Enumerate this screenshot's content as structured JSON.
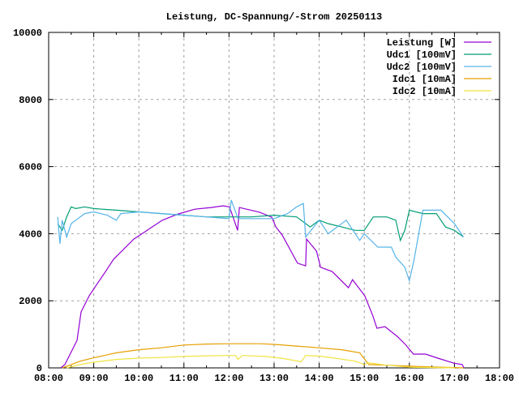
{
  "chart_data": {
    "type": "line",
    "title": "Leistung, DC-Spannung/-Strom 20250113",
    "xlabel": "",
    "ylabel": "",
    "xlim": [
      8,
      18
    ],
    "ylim": [
      0,
      10000
    ],
    "grid": true,
    "legend_position": "top-right",
    "x_unit": "hours",
    "x_ticks": [
      8,
      9,
      10,
      11,
      12,
      13,
      14,
      15,
      16,
      17,
      18
    ],
    "x_tick_labels": [
      "08:00",
      "09:00",
      "10:00",
      "11:00",
      "12:00",
      "13:00",
      "14:00",
      "15:00",
      "16:00",
      "17:00",
      "18:00"
    ],
    "y_ticks": [
      0,
      2000,
      4000,
      6000,
      8000,
      10000
    ],
    "y_tick_labels": [
      "0",
      "2000",
      "4000",
      "6000",
      "8000",
      "10000"
    ],
    "series": [
      {
        "name": "Leistung [W]",
        "color": "#9400d3",
        "x": [
          8.27,
          8.36,
          8.54,
          8.63,
          8.72,
          8.9,
          9.08,
          9.26,
          9.44,
          9.62,
          9.89,
          10.16,
          10.52,
          10.88,
          11.24,
          11.6,
          11.87,
          12.01,
          12.19,
          12.23,
          12.68,
          12.95,
          13.04,
          13.18,
          13.52,
          13.7,
          13.72,
          13.94,
          14.03,
          14.29,
          14.65,
          14.74,
          15.01,
          15.19,
          15.28,
          15.46,
          15.73,
          15.91,
          16.09,
          16.36,
          16.63,
          16.99,
          17.17,
          17.21
        ],
        "y": [
          0,
          100,
          580,
          820,
          1670,
          2150,
          2510,
          2870,
          3240,
          3480,
          3840,
          4080,
          4400,
          4590,
          4730,
          4780,
          4830,
          4800,
          4100,
          4780,
          4640,
          4490,
          4200,
          3960,
          3120,
          3040,
          3840,
          3480,
          3000,
          2870,
          2390,
          2630,
          2150,
          1550,
          1180,
          1230,
          940,
          700,
          410,
          410,
          290,
          140,
          100,
          0
        ]
      },
      {
        "name": "Udc1 [100mV]",
        "color": "#009e73",
        "x": [
          8.2,
          8.3,
          8.4,
          8.5,
          8.6,
          8.8,
          9.0,
          9.5,
          10.0,
          10.5,
          11.0,
          11.5,
          12.0,
          12.5,
          13.0,
          13.5,
          13.8,
          14.0,
          14.2,
          14.5,
          14.8,
          15.0,
          15.2,
          15.5,
          15.7,
          15.8,
          15.9,
          16.0,
          16.3,
          16.6,
          16.8,
          17.0,
          17.2
        ],
        "y": [
          4300,
          4100,
          4500,
          4800,
          4750,
          4800,
          4750,
          4700,
          4650,
          4600,
          4550,
          4500,
          4500,
          4500,
          4550,
          4500,
          4200,
          4400,
          4300,
          4200,
          4100,
          4100,
          4500,
          4500,
          4400,
          3800,
          4100,
          4700,
          4600,
          4600,
          4200,
          4100,
          3900
        ]
      },
      {
        "name": "Udc2 [100mV]",
        "color": "#56b4e9",
        "x": [
          8.2,
          8.25,
          8.3,
          8.4,
          8.5,
          8.6,
          8.8,
          9.0,
          9.3,
          9.5,
          9.6,
          10.0,
          10.5,
          11.0,
          11.5,
          12.0,
          12.05,
          12.2,
          12.3,
          12.6,
          13.0,
          13.3,
          13.5,
          13.65,
          13.7,
          14.0,
          14.2,
          14.6,
          14.9,
          15.0,
          15.3,
          15.6,
          15.7,
          15.9,
          16.0,
          16.1,
          16.3,
          16.7,
          17.0,
          17.2
        ],
        "y": [
          4500,
          3700,
          4400,
          3900,
          4300,
          4400,
          4600,
          4650,
          4550,
          4400,
          4600,
          4650,
          4600,
          4550,
          4500,
          4450,
          5000,
          4450,
          4450,
          4450,
          4450,
          4600,
          4800,
          4900,
          3900,
          4400,
          4000,
          4400,
          3800,
          4000,
          3600,
          3600,
          3300,
          3000,
          2600,
          3200,
          4700,
          4700,
          4300,
          3900
        ]
      },
      {
        "name": "Idc1 [10mA]",
        "color": "#e69f00",
        "x": [
          8.3,
          8.5,
          8.7,
          9.0,
          9.5,
          10.0,
          10.5,
          11.0,
          11.5,
          12.0,
          12.7,
          13.0,
          13.5,
          14.0,
          14.5,
          14.9,
          15.1,
          15.5,
          16.0,
          16.5,
          17.0,
          17.2
        ],
        "y": [
          0,
          100,
          200,
          300,
          450,
          540,
          600,
          680,
          710,
          720,
          720,
          700,
          650,
          600,
          540,
          450,
          100,
          80,
          50,
          30,
          10,
          0
        ]
      },
      {
        "name": "Idc2 [10mA]",
        "color": "#f0e442",
        "x": [
          8.4,
          8.7,
          9.0,
          9.5,
          10.0,
          10.5,
          11.0,
          11.5,
          12.0,
          12.15,
          12.2,
          12.3,
          12.8,
          13.2,
          13.6,
          13.7,
          14.0,
          14.3,
          14.8,
          15.0,
          15.1,
          15.5,
          16.0,
          16.5,
          17.0
        ],
        "y": [
          0,
          100,
          170,
          250,
          290,
          310,
          340,
          360,
          370,
          370,
          250,
          370,
          340,
          280,
          180,
          370,
          350,
          300,
          200,
          100,
          150,
          80,
          20,
          10,
          0
        ]
      }
    ]
  }
}
